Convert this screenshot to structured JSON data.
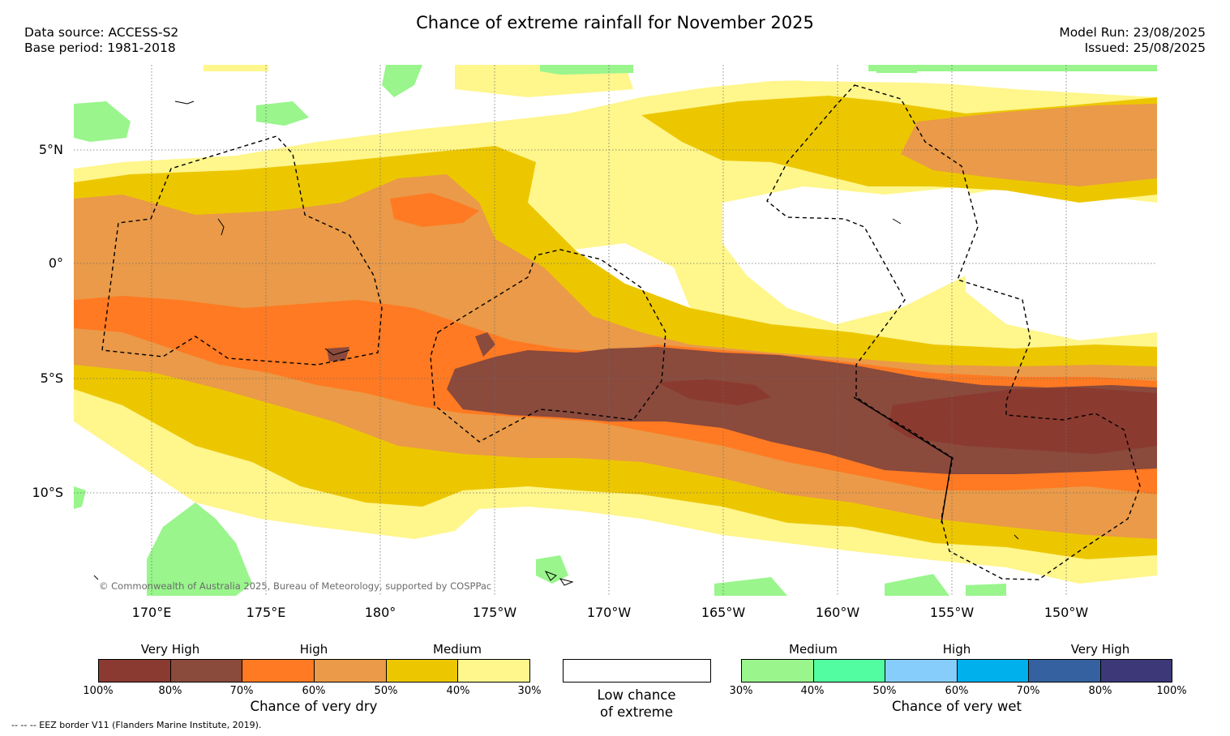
{
  "title": "Chance of extreme rainfall for November 2025",
  "meta_left": {
    "data_source": "Data source: ACCESS-S2",
    "base_period": "Base period: 1981-2018"
  },
  "meta_right": {
    "model_run": "Model Run: 23/08/2025",
    "issued": "Issued: 25/08/2025"
  },
  "map": {
    "lat_labels": [
      "5°N",
      "0°",
      "5°S",
      "10°S"
    ],
    "lon_labels": [
      "170°E",
      "175°E",
      "180°",
      "175°W",
      "170°W",
      "165°W",
      "160°W",
      "155°W",
      "150°W"
    ],
    "copyright": "© Commonwealth of Australia 2025, Bureau of Meteorology, supported by COSPPac",
    "layer_colors": {
      "dry_very_high_100": "#8b3a30",
      "dry_very_high_80": "#8a4a3a",
      "dry_high_70": "#ff7a24",
      "dry_high_60": "#ea9a48",
      "dry_medium_50": "#ecc700",
      "dry_medium_40": "#fff68c",
      "wet_medium_30": "#99f58c"
    }
  },
  "legend_dry": {
    "categories": [
      "Very High",
      "High",
      "Medium"
    ],
    "colors": [
      "#8a3a31",
      "#8a4a3c",
      "#ff7a22",
      "#ea9a48",
      "#ecc700",
      "#fff68c"
    ],
    "ticks": [
      "100%",
      "80%",
      "70%",
      "60%",
      "50%",
      "40%",
      "30%"
    ],
    "caption": "Chance of very dry"
  },
  "legend_low": {
    "line1": "Low chance",
    "line2": "of extreme"
  },
  "legend_wet": {
    "categories": [
      "Medium",
      "High",
      "Very High"
    ],
    "colors": [
      "#99f58c",
      "#52fda2",
      "#87cdfb",
      "#00b0ec",
      "#3661a0",
      "#3d3878"
    ],
    "ticks": [
      "30%",
      "40%",
      "50%",
      "60%",
      "70%",
      "80%",
      "100%"
    ],
    "caption": "Chance of very wet"
  },
  "footnote": "--  --  -- EEZ border V11 (Flanders Marine Institute, 2019)."
}
